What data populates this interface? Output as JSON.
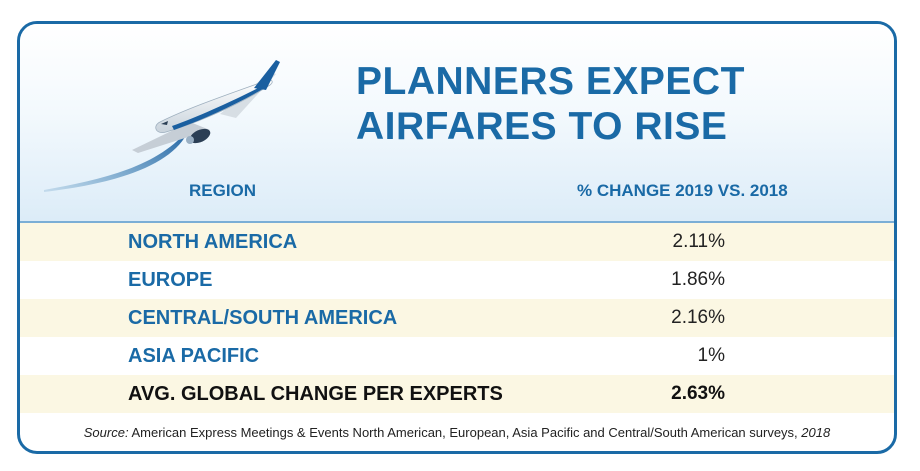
{
  "title_lines": [
    "PLANNERS EXPECT",
    "AIRFARES TO RISE"
  ],
  "chart_data": {
    "type": "table",
    "columns": [
      "REGION",
      "% CHANGE 2019 VS. 2018"
    ],
    "rows": [
      {
        "region": "NORTH AMERICA",
        "change": "2.11%",
        "value": 2.11
      },
      {
        "region": "EUROPE",
        "change": "1.86%",
        "value": 1.86
      },
      {
        "region": "CENTRAL/SOUTH AMERICA",
        "change": "2.16%",
        "value": 2.16
      },
      {
        "region": "ASIA PACIFIC",
        "change": "1%",
        "value": 1
      },
      {
        "region": "AVG. GLOBAL CHANGE PER EXPERTS",
        "change": "2.63%",
        "value": 2.63
      }
    ]
  },
  "source": {
    "label": "Source:",
    "text": " American Express Meetings & Events North American, European, Asia Pacific and Central/South American surveys, ",
    "year": "2018"
  },
  "icons": [
    "airplane-icon"
  ],
  "colors": {
    "accent": "#1a6aa6",
    "row_shade": "#fbf7e3",
    "band": "#dcecf8",
    "text": "#222222"
  }
}
